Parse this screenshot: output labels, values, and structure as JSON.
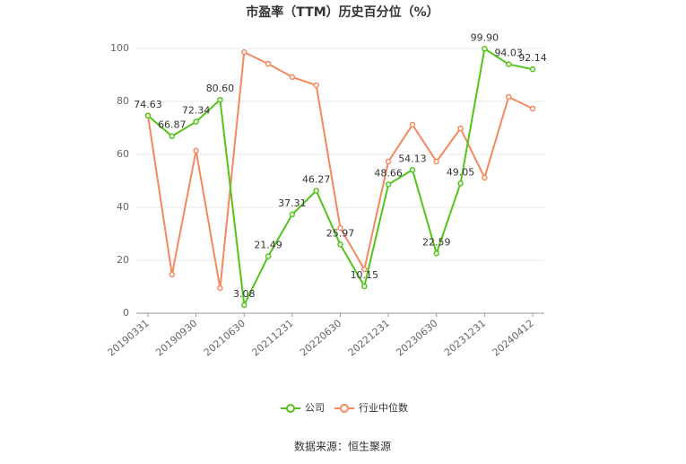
{
  "chart_data": {
    "type": "line",
    "title": "市盈率（TTM）历史百分位（%）",
    "categories": [
      "20190331",
      null,
      "20190930",
      null,
      "20210630",
      null,
      "20211231",
      null,
      "20220630",
      null,
      "20221231",
      null,
      "20230630",
      null,
      "20231231",
      null,
      "20240412"
    ],
    "series": [
      {
        "name": "公司",
        "color": "#52c41a",
        "values": [
          74.63,
          66.87,
          72.34,
          80.6,
          3.08,
          21.49,
          37.31,
          46.27,
          25.97,
          10.15,
          48.66,
          54.13,
          22.59,
          49.05,
          99.9,
          94.03,
          92.14
        ],
        "value_labels": [
          "74.63",
          "66.87",
          "72.34",
          "80.60",
          "3.08",
          "21.49",
          "37.31",
          "46.27",
          "25.97",
          "10.15",
          "48.66",
          "54.13",
          "22.59",
          "49.05",
          "99.90",
          "94.03",
          "92.14"
        ]
      },
      {
        "name": "行业中位数",
        "color": "#f4895f",
        "values": [
          74.6,
          14.6,
          61.4,
          9.5,
          98.6,
          94.2,
          89.2,
          86.1,
          32.2,
          16.6,
          57.3,
          71.2,
          57.3,
          69.8,
          51.2,
          81.7,
          77.3
        ]
      }
    ],
    "ylim": [
      0,
      100
    ],
    "yticks": [
      0,
      20,
      40,
      60,
      80,
      100
    ],
    "grid": true,
    "legend": "bottom",
    "source": "数据来源：恒生聚源"
  }
}
